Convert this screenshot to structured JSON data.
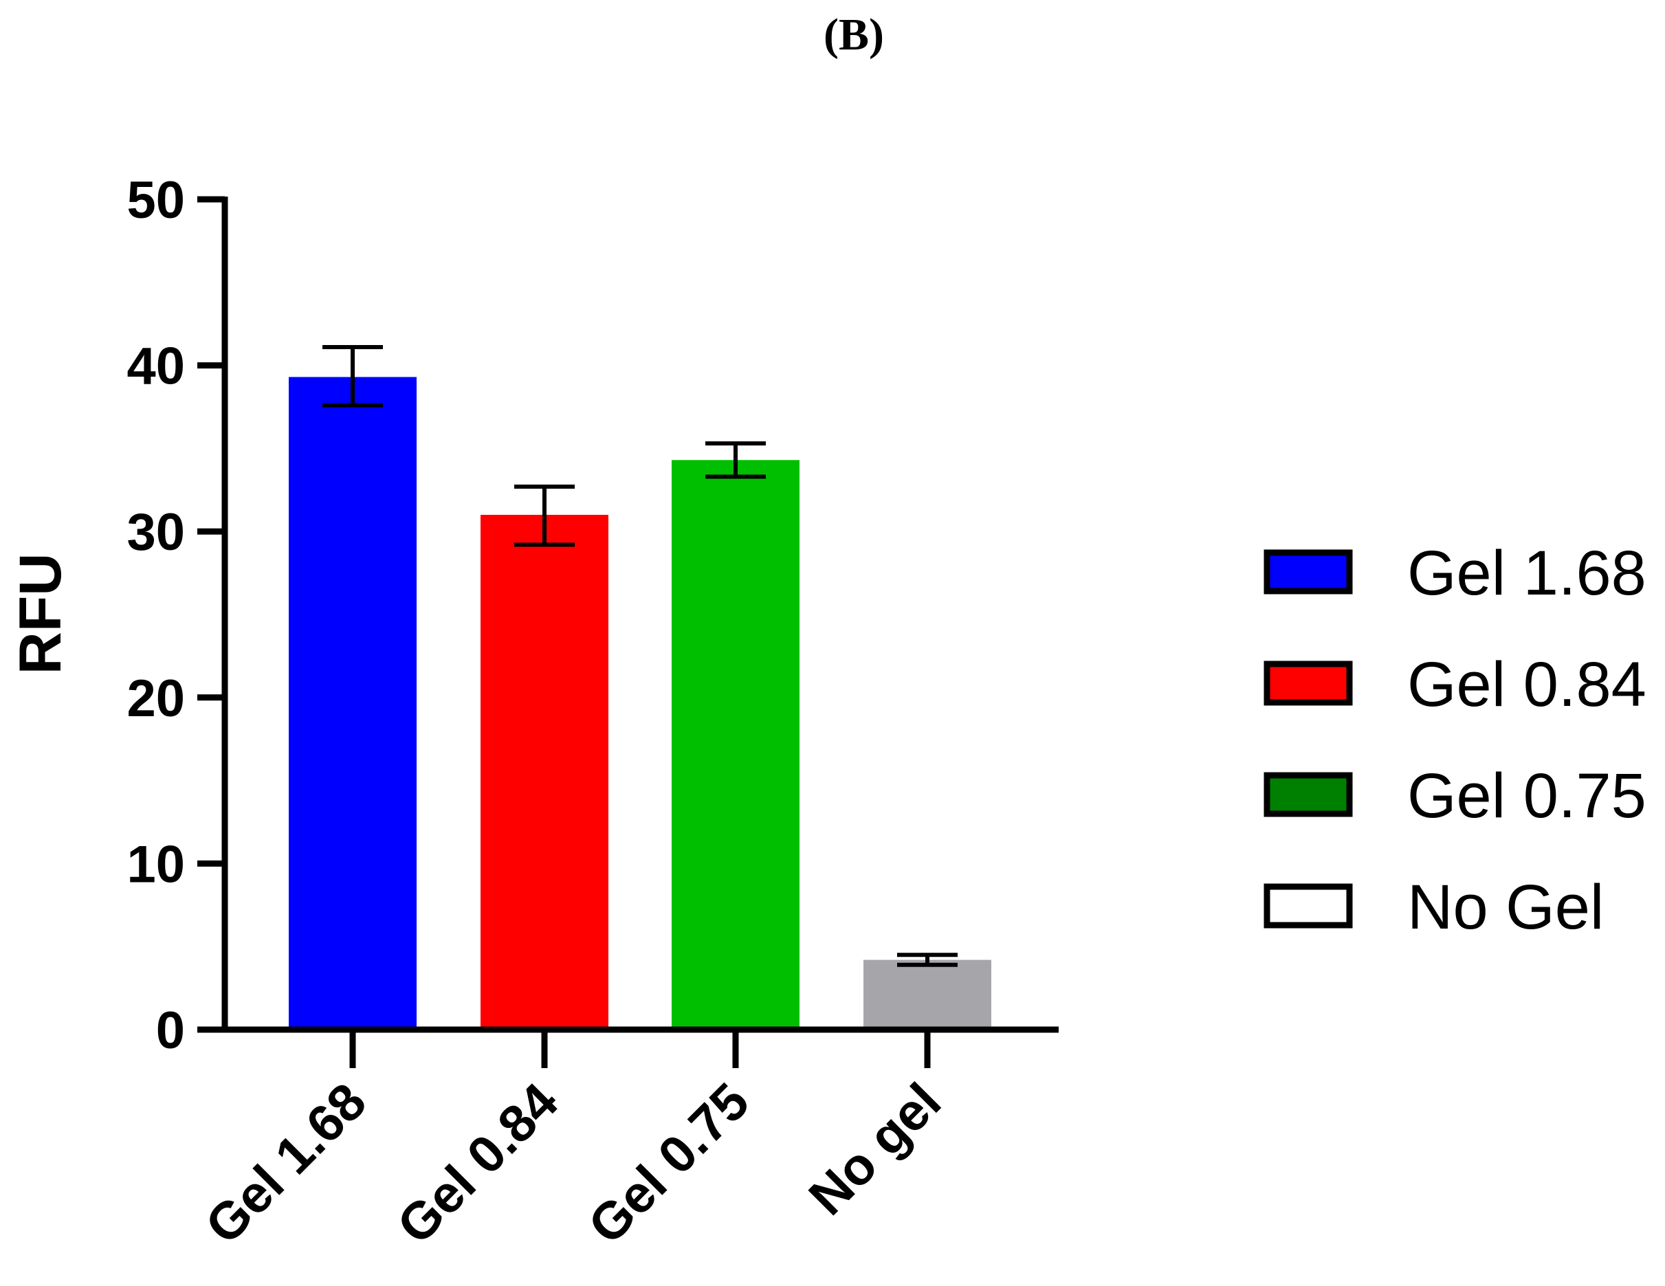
{
  "panel_label": "(B)",
  "chart_data": {
    "type": "bar",
    "title": "",
    "xlabel": "",
    "ylabel": "RFU",
    "ylim": [
      0,
      50
    ],
    "yticks": [
      0,
      10,
      20,
      30,
      40,
      50
    ],
    "grid": false,
    "legend_position": "right",
    "categories": [
      "Gel 1.68",
      "Gel 0.84",
      "Gel 0.75",
      "No gel"
    ],
    "values": [
      39.3,
      31.0,
      34.3,
      4.2
    ],
    "error_low": [
      37.6,
      29.2,
      33.3,
      3.9
    ],
    "error_high": [
      41.1,
      32.7,
      35.3,
      4.5
    ],
    "bar_colors": [
      "#0000ff",
      "#ff0000",
      "#00bf00",
      "#a6a6aa"
    ],
    "legend": [
      {
        "label": "Gel 1.68",
        "color": "#0000ff"
      },
      {
        "label": "Gel 0.84",
        "color": "#ff0000"
      },
      {
        "label": "Gel 0.75",
        "color": "#008000"
      },
      {
        "label": "No Gel",
        "color": "#ffffff"
      }
    ]
  }
}
